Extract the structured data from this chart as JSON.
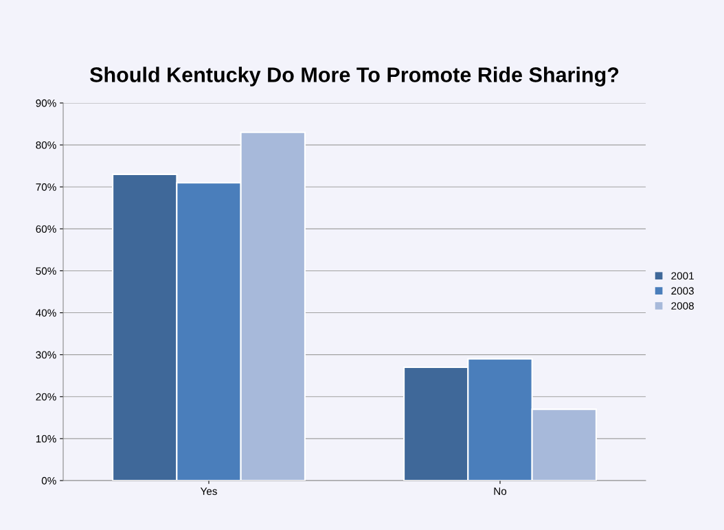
{
  "chart_data": {
    "type": "bar",
    "title": "Should Kentucky Do More To Promote Ride Sharing?",
    "categories": [
      "Yes",
      "No"
    ],
    "series": [
      {
        "name": "2001",
        "color": "#3f6899",
        "values": [
          73,
          27
        ]
      },
      {
        "name": "2003",
        "color": "#4a7ebb",
        "values": [
          71,
          29
        ]
      },
      {
        "name": "2008",
        "color": "#a7b9da",
        "values": [
          83,
          17
        ]
      }
    ],
    "ylim": [
      0,
      90
    ],
    "yticks": [
      {
        "value": 0,
        "label": "0%"
      },
      {
        "value": 10,
        "label": "10%"
      },
      {
        "value": 20,
        "label": "20%"
      },
      {
        "value": 30,
        "label": "30%"
      },
      {
        "value": 40,
        "label": "40%"
      },
      {
        "value": 50,
        "label": "50%"
      },
      {
        "value": 60,
        "label": "60%"
      },
      {
        "value": 70,
        "label": "70%"
      },
      {
        "value": 80,
        "label": "80%"
      },
      {
        "value": 90,
        "label": "90%"
      }
    ],
    "grid": "y",
    "legend": "right"
  }
}
